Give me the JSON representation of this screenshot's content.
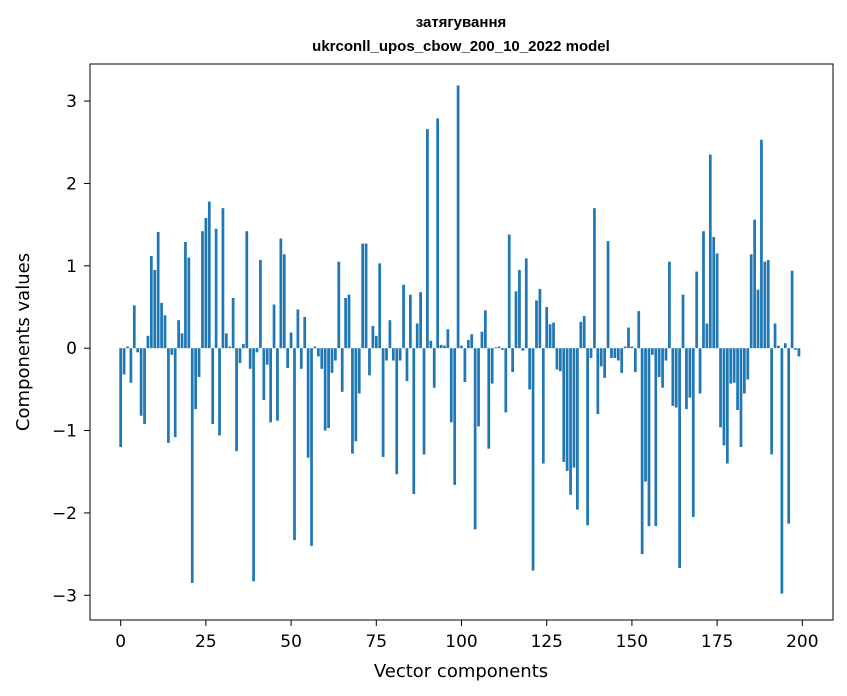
{
  "chart_data": {
    "type": "bar",
    "title": "затягування",
    "subtitle": "ukrconll_upos_cbow_200_10_2022 model",
    "xlabel": "Vector components",
    "ylabel": "Components values",
    "xlim": [
      -9,
      209
    ],
    "ylim": [
      -3.3,
      3.45
    ],
    "xticks": [
      0,
      25,
      50,
      75,
      100,
      125,
      150,
      175,
      200
    ],
    "yticks": [
      -3,
      -2,
      -1,
      0,
      1,
      2,
      3
    ],
    "ytick_labels": [
      "−3",
      "−2",
      "−1",
      "0",
      "1",
      "2",
      "3"
    ],
    "bar_color": "#1f77b4",
    "values": [
      -1.2,
      -0.32,
      0.02,
      -0.42,
      0.52,
      -0.05,
      -0.82,
      -0.92,
      0.15,
      1.12,
      0.95,
      1.41,
      0.55,
      0.4,
      -1.15,
      -0.08,
      -1.08,
      0.34,
      0.18,
      1.29,
      1.1,
      -2.85,
      -0.74,
      -0.35,
      1.42,
      1.58,
      1.78,
      -0.92,
      1.45,
      -1.06,
      1.7,
      0.18,
      0.02,
      0.61,
      -1.25,
      -0.18,
      0.05,
      1.42,
      -0.25,
      -2.83,
      -0.05,
      1.07,
      -0.63,
      -0.2,
      -0.9,
      0.53,
      -0.88,
      1.33,
      1.14,
      -0.24,
      0.19,
      -2.33,
      0.47,
      -0.25,
      0.38,
      -1.33,
      -2.4,
      0.02,
      -0.1,
      -0.25,
      -1.0,
      -0.97,
      -0.3,
      -0.15,
      1.05,
      -0.53,
      0.61,
      0.65,
      -1.28,
      -1.13,
      -0.55,
      1.27,
      1.27,
      -0.33,
      0.27,
      0.15,
      1.03,
      -1.32,
      -0.15,
      0.34,
      -0.15,
      -1.53,
      -0.15,
      0.77,
      -0.4,
      0.65,
      -1.77,
      0.3,
      0.68,
      -1.29,
      2.66,
      0.09,
      -0.48,
      2.79,
      0.04,
      0.03,
      0.23,
      -0.9,
      -1.66,
      3.19,
      0.03,
      -0.41,
      0.1,
      0.17,
      -2.2,
      -0.95,
      0.2,
      0.46,
      -1.22,
      -0.43,
      0.01,
      0.02,
      -0.02,
      -0.78,
      1.38,
      -0.29,
      0.69,
      0.95,
      -0.03,
      1.09,
      -0.5,
      -2.7,
      0.58,
      0.72,
      -1.4,
      0.5,
      0.29,
      0.31,
      -0.26,
      -0.28,
      -1.38,
      -1.49,
      -1.78,
      -1.45,
      -1.96,
      0.32,
      0.39,
      -2.15,
      -0.12,
      1.7,
      -0.8,
      -0.22,
      -0.36,
      1.3,
      -0.12,
      -0.12,
      -0.15,
      -0.3,
      0.02,
      0.25,
      0.02,
      -0.29,
      0.45,
      -2.5,
      -1.62,
      -2.16,
      -0.08,
      -2.16,
      -0.35,
      -0.48,
      -0.15,
      1.05,
      -0.7,
      -0.72,
      -2.67,
      0.65,
      -0.74,
      -0.6,
      -2.05,
      0.93,
      -0.55,
      1.42,
      0.3,
      2.35,
      1.35,
      1.15,
      -0.96,
      -1.18,
      -1.4,
      -0.43,
      -0.42,
      -0.75,
      -1.2,
      -0.55,
      -0.38,
      1.14,
      1.56,
      0.71,
      2.53,
      1.05,
      1.07,
      -1.29,
      0.3,
      0.03,
      -2.98,
      0.06,
      -2.13,
      0.94,
      -0.02,
      -0.1
    ]
  }
}
